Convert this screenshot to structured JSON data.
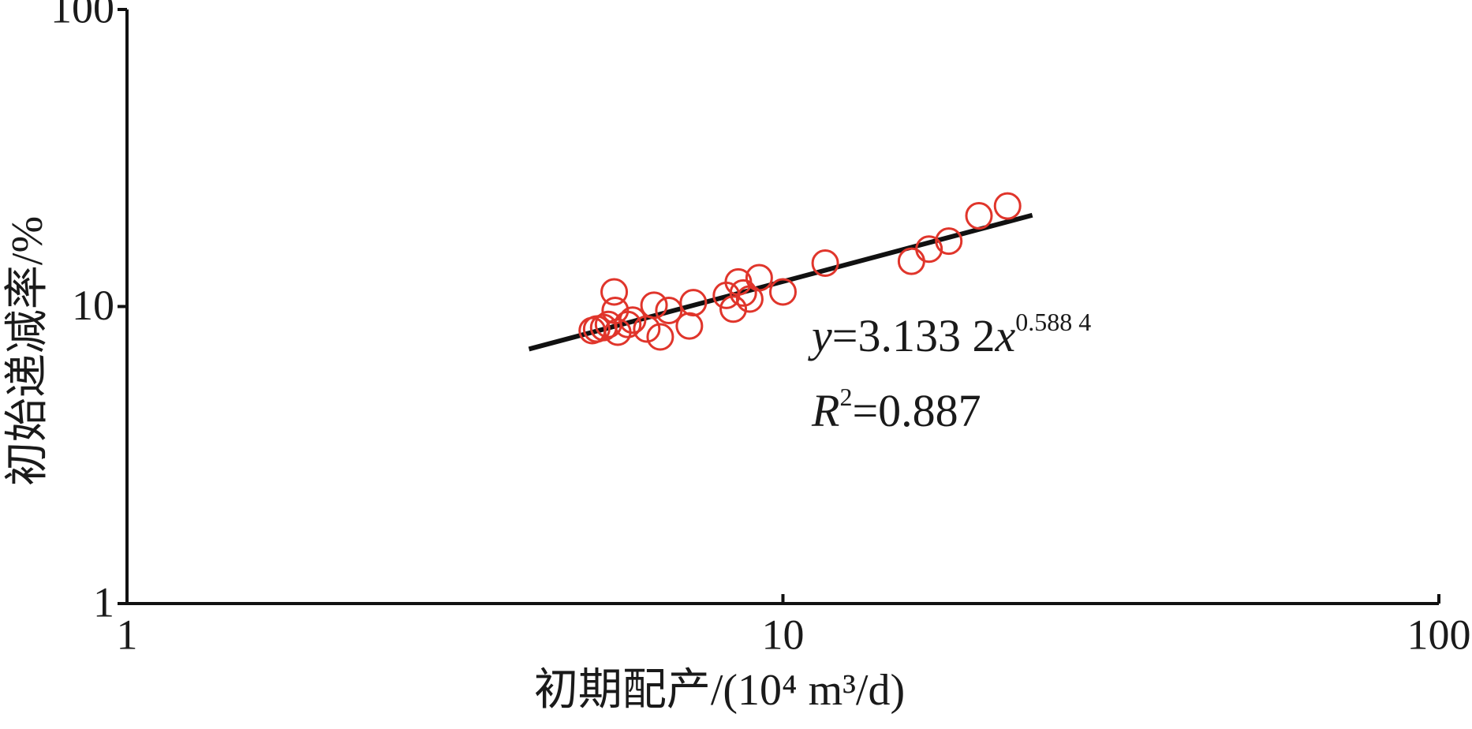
{
  "chart_data": {
    "type": "scatter",
    "x_label": "初期配产/(10⁴ m³/d)",
    "y_label": "初始递减率/%",
    "xscale": "log",
    "yscale": "log",
    "xlim": [
      1,
      100
    ],
    "ylim": [
      1,
      100
    ],
    "xticks": [
      1,
      10,
      100
    ],
    "yticks": [
      1,
      10,
      100
    ],
    "grid": false,
    "color": "#e0352b",
    "x": [
      5.53,
      5.12,
      5.2,
      5.33,
      5.42,
      5.55,
      5.6,
      5.8,
      5.9,
      6.2,
      6.36,
      6.5,
      6.7,
      7.2,
      7.3,
      8.2,
      8.4,
      8.55,
      8.7,
      8.9,
      9.2,
      10.0,
      11.6,
      15.7,
      16.7,
      17.9,
      19.9,
      22.0
    ],
    "values": [
      11.2,
      8.3,
      8.4,
      8.5,
      8.7,
      9.7,
      8.2,
      8.7,
      9.0,
      8.4,
      10.1,
      7.9,
      9.7,
      8.6,
      10.3,
      10.9,
      9.8,
      12.1,
      11.1,
      10.6,
      12.5,
      11.2,
      14.0,
      14.2,
      15.6,
      16.6,
      20.2,
      21.8
    ],
    "fit_line": {
      "color": "#111111",
      "x": [
        4.1,
        24
      ],
      "values": [
        7.19,
        20.3
      ]
    },
    "equation": {
      "var_y": "y",
      "body": "=3.133 2",
      "var_x": "x",
      "exponent": "0.588 4"
    },
    "r_squared": {
      "var": "R",
      "power": "2",
      "body": "=0.887"
    }
  }
}
